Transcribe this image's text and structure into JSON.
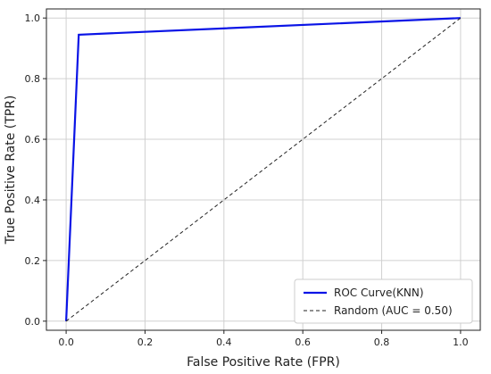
{
  "chart_data": {
    "type": "line",
    "title": "",
    "xlabel": "False Positive Rate (FPR)",
    "ylabel": "True Positive Rate (TPR)",
    "xlim": [
      -0.05,
      1.05
    ],
    "ylim": [
      -0.03,
      1.03
    ],
    "xticks": [
      "0.0",
      "0.2",
      "0.4",
      "0.6",
      "0.8",
      "1.0"
    ],
    "yticks": [
      "0.0",
      "0.2",
      "0.4",
      "0.6",
      "0.8",
      "1.0"
    ],
    "grid": true,
    "legend_position": "bottom-right",
    "series": [
      {
        "name": "ROC Curve(KNN)",
        "color": "#0a14e6",
        "style": "solid",
        "x": [
          0.0,
          0.032,
          1.0
        ],
        "y": [
          0.0,
          0.945,
          1.0
        ]
      },
      {
        "name": "Random (AUC = 0.50)",
        "color": "#222222",
        "style": "dashed",
        "x": [
          0.0,
          1.0
        ],
        "y": [
          0.0,
          1.0
        ]
      }
    ]
  }
}
